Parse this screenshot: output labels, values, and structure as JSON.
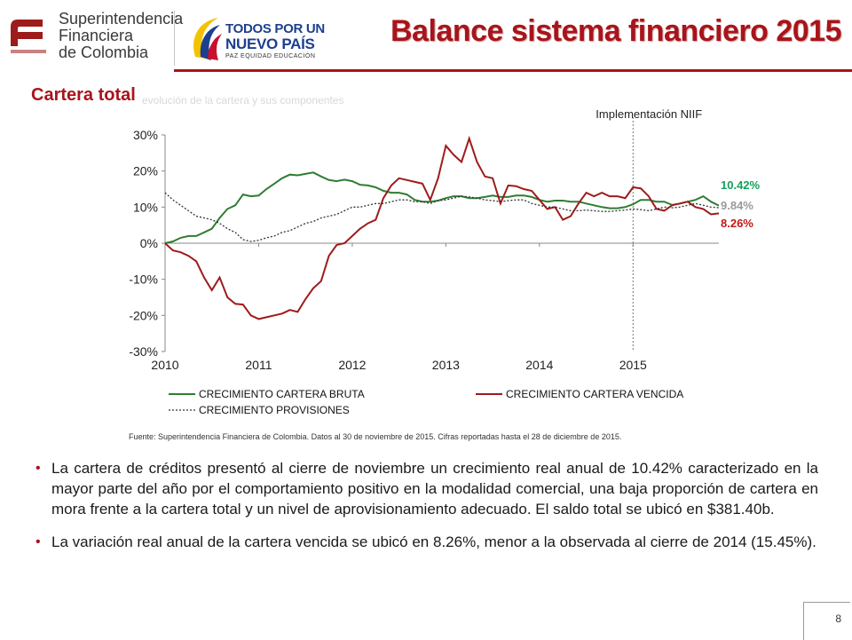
{
  "header": {
    "sfc_logo_lines": [
      "Superintendencia",
      "Financiera",
      "de Colombia"
    ],
    "gov_logo_line1": "TODOS POR UN",
    "gov_logo_line2": "NUEVO PAÍS",
    "gov_logo_tagline": "PAZ  EQUIDAD  EDUCACIÓN",
    "title": "Balance sistema financiero 2015",
    "accent_color": "#a8141b"
  },
  "subtitle": "Cartera total",
  "subtitle_ghost": "evolución de la cartera y sus componentes",
  "chart_data": {
    "type": "line",
    "annotation": "Implementación NIIF",
    "annotation_x": 2015.0,
    "ylim": [
      -0.3,
      0.3
    ],
    "yticks": [
      "30%",
      "20%",
      "10%",
      "0%",
      "-10%",
      "-20%",
      "-30%"
    ],
    "ytick_values": [
      0.3,
      0.2,
      0.1,
      0.0,
      -0.1,
      -0.2,
      -0.3
    ],
    "xlim": [
      2010.0,
      2015.917
    ],
    "xticks": [
      "2010",
      "2011",
      "2012",
      "2013",
      "2014",
      "2015"
    ],
    "xtick_values": [
      2010,
      2011,
      2012,
      2013,
      2014,
      2015
    ],
    "grid": false,
    "legend_placement": "bottom",
    "end_labels": [
      {
        "text": "10.42%",
        "series": 0,
        "color": "#15a05a"
      },
      {
        "text": "9.84%",
        "series": 2,
        "color": "#9a9a9a"
      },
      {
        "text": "8.26%",
        "series": 1,
        "color": "#c01818"
      }
    ],
    "series": [
      {
        "name": "CRECIMIENTO CARTERA BRUTA",
        "color": "#2f7d32",
        "style": "solid",
        "x": [
          2010.0,
          2010.083,
          2010.167,
          2010.25,
          2010.333,
          2010.417,
          2010.5,
          2010.583,
          2010.667,
          2010.75,
          2010.833,
          2010.917,
          2011.0,
          2011.083,
          2011.167,
          2011.25,
          2011.333,
          2011.417,
          2011.5,
          2011.583,
          2011.667,
          2011.75,
          2011.833,
          2011.917,
          2012.0,
          2012.083,
          2012.167,
          2012.25,
          2012.333,
          2012.417,
          2012.5,
          2012.583,
          2012.667,
          2012.75,
          2012.833,
          2012.917,
          2013.0,
          2013.083,
          2013.167,
          2013.25,
          2013.333,
          2013.417,
          2013.5,
          2013.583,
          2013.667,
          2013.75,
          2013.833,
          2013.917,
          2014.0,
          2014.083,
          2014.167,
          2014.25,
          2014.333,
          2014.417,
          2014.5,
          2014.583,
          2014.667,
          2014.75,
          2014.833,
          2014.917,
          2015.0,
          2015.083,
          2015.167,
          2015.25,
          2015.333,
          2015.417,
          2015.5,
          2015.583,
          2015.667,
          2015.75,
          2015.833,
          2015.917
        ],
        "y": [
          0.0,
          0.005,
          0.015,
          0.02,
          0.02,
          0.03,
          0.04,
          0.07,
          0.095,
          0.105,
          0.135,
          0.13,
          0.132,
          0.15,
          0.165,
          0.18,
          0.19,
          0.188,
          0.192,
          0.196,
          0.185,
          0.175,
          0.172,
          0.176,
          0.172,
          0.162,
          0.16,
          0.155,
          0.145,
          0.14,
          0.14,
          0.135,
          0.12,
          0.115,
          0.115,
          0.118,
          0.125,
          0.13,
          0.13,
          0.125,
          0.125,
          0.128,
          0.132,
          0.128,
          0.128,
          0.132,
          0.132,
          0.128,
          0.12,
          0.115,
          0.118,
          0.118,
          0.115,
          0.115,
          0.11,
          0.105,
          0.1,
          0.097,
          0.097,
          0.1,
          0.108,
          0.12,
          0.12,
          0.115,
          0.115,
          0.106,
          0.11,
          0.115,
          0.12,
          0.13,
          0.115,
          0.1042
        ]
      },
      {
        "name": "CRECIMIENTO CARTERA VENCIDA",
        "color": "#9e1b1b",
        "style": "solid",
        "x": [
          2010.0,
          2010.083,
          2010.167,
          2010.25,
          2010.333,
          2010.417,
          2010.5,
          2010.583,
          2010.667,
          2010.75,
          2010.833,
          2010.917,
          2011.0,
          2011.083,
          2011.167,
          2011.25,
          2011.333,
          2011.417,
          2011.5,
          2011.583,
          2011.667,
          2011.75,
          2011.833,
          2011.917,
          2012.0,
          2012.083,
          2012.167,
          2012.25,
          2012.333,
          2012.417,
          2012.5,
          2012.583,
          2012.667,
          2012.75,
          2012.833,
          2012.917,
          2013.0,
          2013.083,
          2013.167,
          2013.25,
          2013.333,
          2013.417,
          2013.5,
          2013.583,
          2013.667,
          2013.75,
          2013.833,
          2013.917,
          2014.0,
          2014.083,
          2014.167,
          2014.25,
          2014.333,
          2014.417,
          2014.5,
          2014.583,
          2014.667,
          2014.75,
          2014.833,
          2014.917,
          2015.0,
          2015.083,
          2015.167,
          2015.25,
          2015.333,
          2015.417,
          2015.5,
          2015.583,
          2015.667,
          2015.75,
          2015.833,
          2015.917
        ],
        "y": [
          0.0,
          -0.02,
          -0.025,
          -0.035,
          -0.05,
          -0.095,
          -0.13,
          -0.095,
          -0.15,
          -0.168,
          -0.17,
          -0.2,
          -0.21,
          -0.205,
          -0.2,
          -0.195,
          -0.185,
          -0.19,
          -0.155,
          -0.125,
          -0.105,
          -0.035,
          -0.005,
          -0.0,
          0.02,
          0.04,
          0.055,
          0.065,
          0.125,
          0.16,
          0.18,
          0.175,
          0.17,
          0.165,
          0.12,
          0.18,
          0.27,
          0.245,
          0.225,
          0.29,
          0.225,
          0.185,
          0.18,
          0.11,
          0.16,
          0.158,
          0.15,
          0.145,
          0.12,
          0.095,
          0.1,
          0.065,
          0.075,
          0.11,
          0.14,
          0.13,
          0.14,
          0.13,
          0.13,
          0.125,
          0.155,
          0.152,
          0.13,
          0.095,
          0.09,
          0.105,
          0.11,
          0.115,
          0.1,
          0.095,
          0.08,
          0.0826
        ]
      },
      {
        "name": "CRECIMIENTO PROVISIONES",
        "color": "#333333",
        "style": "dotted",
        "x": [
          2010.0,
          2010.083,
          2010.167,
          2010.25,
          2010.333,
          2010.417,
          2010.5,
          2010.583,
          2010.667,
          2010.75,
          2010.833,
          2010.917,
          2011.0,
          2011.083,
          2011.167,
          2011.25,
          2011.333,
          2011.417,
          2011.5,
          2011.583,
          2011.667,
          2011.75,
          2011.833,
          2011.917,
          2012.0,
          2012.083,
          2012.167,
          2012.25,
          2012.333,
          2012.417,
          2012.5,
          2012.583,
          2012.667,
          2012.75,
          2012.833,
          2012.917,
          2013.0,
          2013.083,
          2013.167,
          2013.25,
          2013.333,
          2013.417,
          2013.5,
          2013.583,
          2013.667,
          2013.75,
          2013.833,
          2013.917,
          2014.0,
          2014.083,
          2014.167,
          2014.25,
          2014.333,
          2014.417,
          2014.5,
          2014.583,
          2014.667,
          2014.75,
          2014.833,
          2014.917,
          2015.0,
          2015.083,
          2015.167,
          2015.25,
          2015.333,
          2015.417,
          2015.5,
          2015.583,
          2015.667,
          2015.75,
          2015.833,
          2015.917
        ],
        "y": [
          0.14,
          0.12,
          0.105,
          0.09,
          0.075,
          0.07,
          0.065,
          0.055,
          0.04,
          0.03,
          0.01,
          0.005,
          0.008,
          0.015,
          0.02,
          0.03,
          0.035,
          0.045,
          0.055,
          0.06,
          0.07,
          0.075,
          0.08,
          0.09,
          0.1,
          0.1,
          0.105,
          0.11,
          0.11,
          0.115,
          0.12,
          0.12,
          0.115,
          0.115,
          0.11,
          0.118,
          0.12,
          0.125,
          0.13,
          0.128,
          0.125,
          0.12,
          0.118,
          0.115,
          0.118,
          0.12,
          0.12,
          0.11,
          0.105,
          0.1,
          0.1,
          0.095,
          0.09,
          0.09,
          0.092,
          0.09,
          0.088,
          0.088,
          0.09,
          0.092,
          0.095,
          0.093,
          0.09,
          0.095,
          0.1,
          0.098,
          0.1,
          0.105,
          0.11,
          0.105,
          0.1,
          0.0984
        ]
      }
    ]
  },
  "source": "Fuente: Superintendencia Financiera de Colombia. Datos al 30 de noviembre de 2015. Cifras reportadas hasta el 28 de diciembre de 2015.",
  "bullets": [
    "La cartera de créditos presentó al cierre de noviembre un crecimiento real anual de 10.42% caracterizado en la mayor parte del año por el comportamiento positivo en la modalidad comercial, una baja proporción de cartera en mora frente a la cartera total y un nivel de aprovisionamiento adecuado. El saldo total se ubicó en $381.40b.",
    "La variación real anual de la cartera vencida se ubicó en 8.26%, menor a la observada al cierre de 2014 (15.45%)."
  ],
  "page_number": "8"
}
